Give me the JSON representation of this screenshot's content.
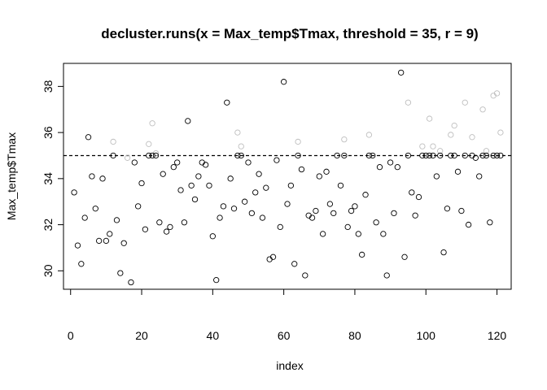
{
  "chart_data": {
    "type": "scatter",
    "title": "decluster.runs(x = Max_temp$Tmax, threshold = 35, r = 9)",
    "xlabel": "index",
    "ylabel": "Max_temp$Tmax",
    "xlim": [
      -2,
      124
    ],
    "ylim": [
      29.2,
      39.0
    ],
    "x_ticks": [
      0,
      20,
      40,
      60,
      80,
      100,
      120
    ],
    "y_ticks": [
      30,
      32,
      34,
      36,
      38
    ],
    "threshold": 35,
    "grid": false,
    "legend": "none",
    "colors": {
      "declustered": "#000000",
      "removed": "#bebebe",
      "threshold_line": "#000000"
    },
    "series": [
      {
        "role": "declustered",
        "points": [
          [
            1,
            33.4
          ],
          [
            2,
            31.1
          ],
          [
            3,
            30.3
          ],
          [
            4,
            32.3
          ],
          [
            5,
            35.8
          ],
          [
            6,
            34.1
          ],
          [
            7,
            32.7
          ],
          [
            8,
            31.3
          ],
          [
            9,
            34.0
          ],
          [
            10,
            31.3
          ],
          [
            11,
            31.6
          ],
          [
            12,
            35.0
          ],
          [
            13,
            32.2
          ],
          [
            14,
            29.9
          ],
          [
            15,
            31.2
          ],
          [
            17,
            29.5
          ],
          [
            18,
            34.7
          ],
          [
            19,
            32.8
          ],
          [
            20,
            33.8
          ],
          [
            21,
            31.8
          ],
          [
            22,
            35.0
          ],
          [
            23,
            35.0
          ],
          [
            24,
            35.0
          ],
          [
            25,
            32.1
          ],
          [
            26,
            34.2
          ],
          [
            27,
            31.7
          ],
          [
            28,
            31.9
          ],
          [
            29,
            34.5
          ],
          [
            30,
            34.7
          ],
          [
            31,
            33.5
          ],
          [
            32,
            32.1
          ],
          [
            33,
            36.5
          ],
          [
            34,
            33.7
          ],
          [
            35,
            33.1
          ],
          [
            36,
            34.1
          ],
          [
            37,
            34.7
          ],
          [
            38,
            34.6
          ],
          [
            39,
            33.7
          ],
          [
            40,
            31.5
          ],
          [
            41,
            29.6
          ],
          [
            42,
            32.3
          ],
          [
            43,
            32.8
          ],
          [
            44,
            37.3
          ],
          [
            45,
            34.0
          ],
          [
            46,
            32.7
          ],
          [
            47,
            35.0
          ],
          [
            48,
            35.0
          ],
          [
            49,
            33.0
          ],
          [
            50,
            34.7
          ],
          [
            51,
            32.5
          ],
          [
            52,
            33.4
          ],
          [
            53,
            34.2
          ],
          [
            54,
            32.3
          ],
          [
            55,
            33.6
          ],
          [
            56,
            30.5
          ],
          [
            57,
            30.6
          ],
          [
            58,
            34.8
          ],
          [
            59,
            31.9
          ],
          [
            60,
            38.2
          ],
          [
            61,
            32.9
          ],
          [
            62,
            33.7
          ],
          [
            63,
            30.3
          ],
          [
            64,
            35.0
          ],
          [
            65,
            34.4
          ],
          [
            66,
            29.8
          ],
          [
            67,
            32.4
          ],
          [
            68,
            32.3
          ],
          [
            69,
            32.6
          ],
          [
            70,
            34.1
          ],
          [
            71,
            31.6
          ],
          [
            72,
            34.3
          ],
          [
            73,
            32.9
          ],
          [
            74,
            32.5
          ],
          [
            75,
            35.0
          ],
          [
            76,
            33.7
          ],
          [
            77,
            35.0
          ],
          [
            78,
            31.9
          ],
          [
            79,
            32.6
          ],
          [
            80,
            32.8
          ],
          [
            81,
            31.6
          ],
          [
            82,
            30.7
          ],
          [
            83,
            33.3
          ],
          [
            84,
            35.0
          ],
          [
            85,
            35.0
          ],
          [
            86,
            32.1
          ],
          [
            87,
            34.5
          ],
          [
            88,
            31.6
          ],
          [
            89,
            29.8
          ],
          [
            90,
            34.7
          ],
          [
            91,
            32.5
          ],
          [
            92,
            34.5
          ],
          [
            93,
            38.6
          ],
          [
            94,
            30.6
          ],
          [
            95,
            35.0
          ],
          [
            96,
            33.4
          ],
          [
            97,
            32.4
          ],
          [
            98,
            33.2
          ],
          [
            99,
            35.0
          ],
          [
            100,
            35.0
          ],
          [
            101,
            35.0
          ],
          [
            102,
            35.0
          ],
          [
            103,
            34.1
          ],
          [
            104,
            35.0
          ],
          [
            105,
            30.8
          ],
          [
            106,
            32.7
          ],
          [
            107,
            35.0
          ],
          [
            108,
            35.0
          ],
          [
            109,
            34.3
          ],
          [
            110,
            32.6
          ],
          [
            111,
            35.0
          ],
          [
            112,
            32.0
          ],
          [
            113,
            35.0
          ],
          [
            114,
            34.9
          ],
          [
            115,
            34.1
          ],
          [
            116,
            35.0
          ],
          [
            117,
            35.0
          ],
          [
            118,
            32.1
          ],
          [
            119,
            35.0
          ],
          [
            120,
            35.0
          ],
          [
            121,
            35.0
          ]
        ]
      },
      {
        "role": "removed",
        "points": [
          [
            12,
            35.6
          ],
          [
            16,
            34.9
          ],
          [
            22,
            35.5
          ],
          [
            23,
            36.4
          ],
          [
            24,
            35.1
          ],
          [
            47,
            36.0
          ],
          [
            48,
            35.4
          ],
          [
            64,
            35.6
          ],
          [
            77,
            35.7
          ],
          [
            84,
            35.9
          ],
          [
            95,
            37.3
          ],
          [
            99,
            35.4
          ],
          [
            101,
            36.6
          ],
          [
            102,
            35.4
          ],
          [
            104,
            35.2
          ],
          [
            107,
            35.9
          ],
          [
            108,
            36.3
          ],
          [
            111,
            37.3
          ],
          [
            113,
            35.8
          ],
          [
            116,
            37.0
          ],
          [
            117,
            35.2
          ],
          [
            119,
            37.6
          ],
          [
            120,
            37.7
          ],
          [
            121,
            36.0
          ]
        ]
      }
    ]
  }
}
